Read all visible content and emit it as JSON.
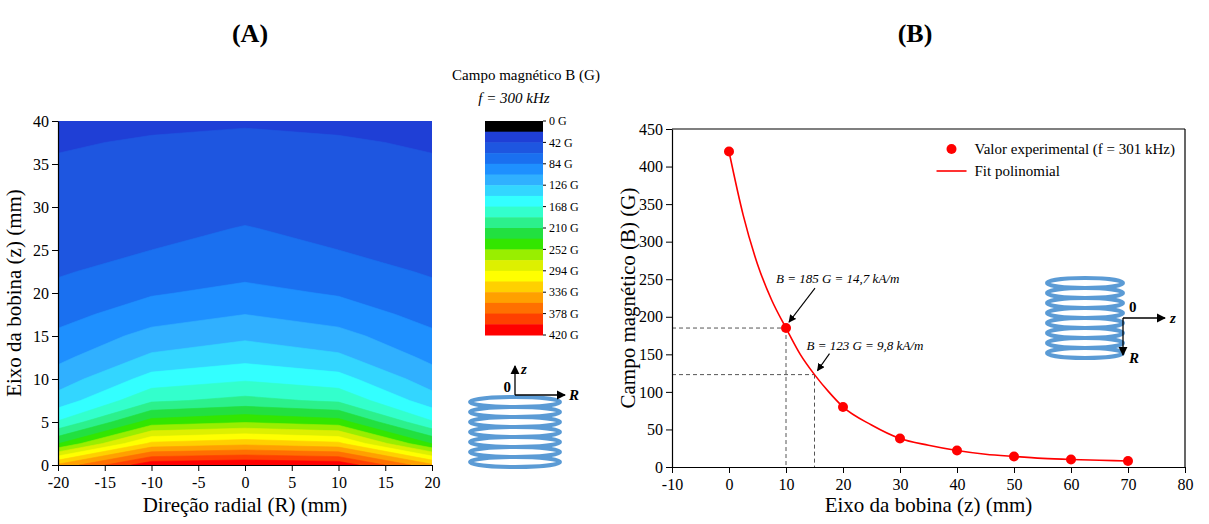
{
  "chart_data": [
    {
      "type": "contour",
      "panel": "(A)",
      "xlabel": "Direção radial (R) (mm)",
      "ylabel": "Eixo da bobina (z) (mm)",
      "x": [
        -20,
        -10,
        0,
        10,
        20
      ],
      "y": [
        0,
        2.5,
        5,
        7.5,
        10,
        12.5,
        15,
        17.5,
        20,
        22.5,
        25,
        27.5,
        30,
        32.5,
        35,
        37.5,
        40
      ],
      "z": [
        [
          340,
          415,
          420,
          415,
          340
        ],
        [
          230,
          320,
          330,
          320,
          230
        ],
        [
          170,
          240,
          250,
          240,
          170
        ],
        [
          135,
          185,
          195,
          185,
          135
        ],
        [
          115,
          155,
          165,
          155,
          115
        ],
        [
          100,
          130,
          140,
          130,
          100
        ],
        [
          88,
          112,
          122,
          112,
          88
        ],
        [
          77,
          95,
          105,
          95,
          77
        ],
        [
          68,
          82,
          90,
          82,
          68
        ],
        [
          61,
          71,
          78,
          71,
          61
        ],
        [
          55,
          63,
          69,
          63,
          55
        ],
        [
          50,
          57,
          64,
          57,
          50
        ],
        [
          47,
          52,
          57,
          52,
          47
        ],
        [
          45,
          49,
          52,
          49,
          45
        ],
        [
          43,
          46,
          48,
          46,
          43
        ],
        [
          41,
          43,
          44,
          43,
          41
        ],
        [
          38,
          40,
          41,
          40,
          38
        ]
      ],
      "xlim": [
        -20,
        20
      ],
      "xticks": [
        -20,
        -15,
        -10,
        -5,
        0,
        5,
        10,
        15,
        20
      ],
      "ylim": [
        0,
        40
      ],
      "yticks": [
        0,
        5,
        10,
        15,
        20,
        25,
        30,
        35,
        40
      ],
      "colorbar": {
        "title": "Campo magnético B (G)",
        "subtitle": "f = 300 kHz",
        "range": [
          0,
          420
        ],
        "levels": [
          0,
          21,
          42,
          63,
          84,
          105,
          126,
          147,
          168,
          189,
          210,
          231,
          252,
          273,
          294,
          315,
          336,
          357,
          378,
          399,
          420
        ],
        "ticks": [
          {
            "value": 0,
            "label": "0 G"
          },
          {
            "value": 42,
            "label": "42 G"
          },
          {
            "value": 84,
            "label": "84 G"
          },
          {
            "value": 126,
            "label": "126 G"
          },
          {
            "value": 168,
            "label": "168 G"
          },
          {
            "value": 210,
            "label": "210 G"
          },
          {
            "value": 252,
            "label": "252 G"
          },
          {
            "value": 294,
            "label": "294 G"
          },
          {
            "value": 336,
            "label": "336 G"
          },
          {
            "value": 378,
            "label": "378 G"
          },
          {
            "value": 420,
            "label": "420 G"
          }
        ],
        "colors": [
          "#000000",
          "#1f3fd6",
          "#1e56e0",
          "#1a70f0",
          "#1e90ff",
          "#30b0ff",
          "#33d6ff",
          "#33ffff",
          "#33ffcc",
          "#2cf08c",
          "#22e040",
          "#33e600",
          "#99ee00",
          "#ddf000",
          "#ffff00",
          "#ffd000",
          "#ffa000",
          "#ff7000",
          "#ff4000",
          "#ff0000"
        ]
      },
      "coil_labels": [
        "0",
        "z",
        "R"
      ]
    },
    {
      "type": "scatter",
      "panel": "(B)",
      "xlabel": "Eixo da bobina (z) (mm)",
      "ylabel": "Campo magnético (B) (G)",
      "xlim": [
        -10,
        80
      ],
      "xticks": [
        -10,
        0,
        10,
        20,
        30,
        40,
        50,
        60,
        70,
        80
      ],
      "ylim": [
        0,
        450
      ],
      "yticks": [
        0,
        50,
        100,
        150,
        200,
        250,
        300,
        350,
        400,
        450
      ],
      "legend": "top-right",
      "series": [
        {
          "name": "Valor experimental (f = 301 kHz)",
          "type": "scatter",
          "color": "#ff0000",
          "marker": "circle",
          "x": [
            0,
            10,
            20,
            30,
            40,
            50,
            60,
            70
          ],
          "values": [
            420,
            185,
            80,
            38,
            22,
            14,
            10,
            8
          ]
        },
        {
          "name": "Fit polinomial",
          "type": "line",
          "color": "#ff0000",
          "line_style": "solid",
          "x": [
            0,
            2.5,
            5,
            7.5,
            10,
            12.5,
            15,
            17.5,
            20,
            25,
            30,
            35,
            40,
            45,
            50,
            55,
            60,
            65,
            70
          ],
          "values": [
            420,
            335,
            270,
            222,
            185,
            150,
            123,
            100,
            80,
            56,
            38,
            29,
            22,
            17,
            14,
            11.5,
            10,
            9,
            8
          ]
        }
      ],
      "annotations": [
        {
          "text": "B = 185 G = 14,7 kA/m",
          "x": 10,
          "y": 185
        },
        {
          "text": "B = 123 G = 9,8 kA/m",
          "x": 15,
          "y": 123
        }
      ],
      "coil_labels": [
        "0",
        "z",
        "R"
      ]
    }
  ]
}
